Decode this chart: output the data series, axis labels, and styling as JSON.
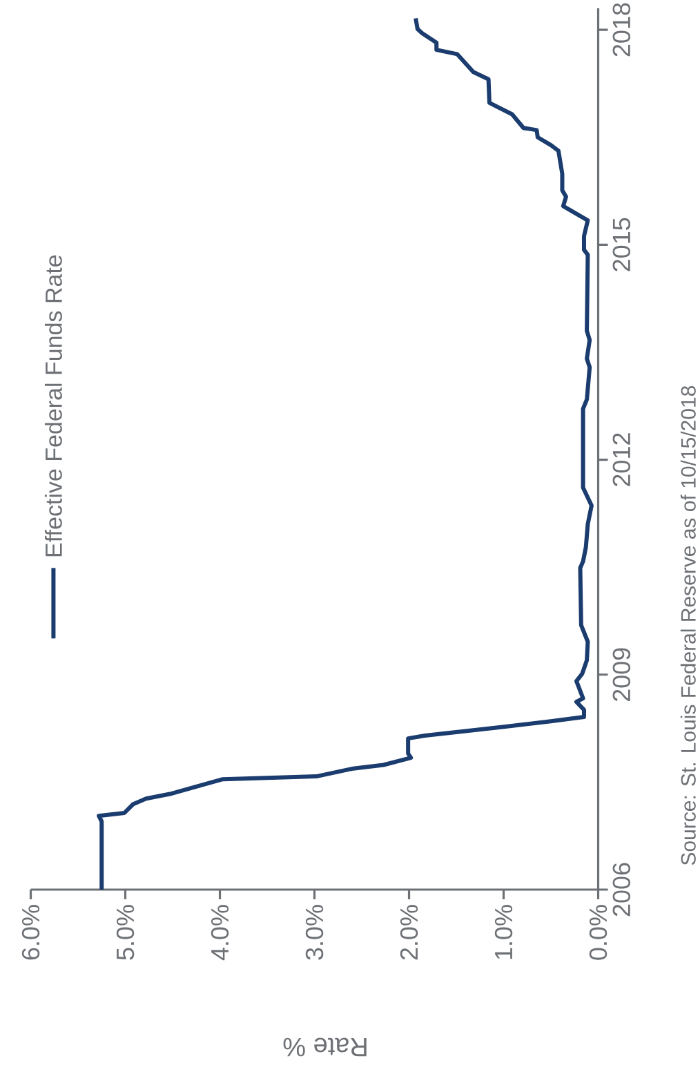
{
  "chart_data": {
    "type": "line",
    "xlabel": "Rate %",
    "annotations": [
      "Source: St. Louis Federal Reserve as of 10/15/2018"
    ],
    "series": [
      {
        "name": "Effective Federal Funds Rate",
        "color": "#1b3c6e",
        "x": [
          5.25,
          5.25,
          5.28,
          5.01,
          4.92,
          4.78,
          4.51,
          3.97,
          2.98,
          2.59,
          2.27,
          1.98,
          2.01,
          2.01,
          1.83,
          1.01,
          0.5,
          0.15,
          0.15,
          0.23,
          0.16,
          0.23,
          0.17,
          0.12,
          0.11,
          0.18,
          0.19,
          0.16,
          0.13,
          0.11,
          0.07,
          0.16,
          0.16,
          0.12,
          0.09,
          0.12,
          0.09,
          0.12,
          0.11,
          0.15,
          0.15,
          0.11,
          0.37,
          0.34,
          0.38,
          0.38,
          0.42,
          0.5,
          0.64,
          0.65,
          0.79,
          0.91,
          1.15,
          1.16,
          1.32,
          1.49,
          1.71,
          1.71,
          1.86,
          1.91,
          1.93
        ],
        "values": [
          2006.0,
          2006.95,
          2007.03,
          2007.07,
          2007.19,
          2007.27,
          2007.34,
          2007.54,
          2007.58,
          2007.69,
          2007.74,
          2007.84,
          2007.9,
          2008.11,
          2008.15,
          2008.27,
          2008.35,
          2008.41,
          2008.51,
          2008.62,
          2008.67,
          2008.91,
          2009.01,
          2009.2,
          2009.46,
          2009.69,
          2010.49,
          2010.58,
          2010.78,
          2011.1,
          2011.36,
          2011.61,
          2012.71,
          2012.84,
          2013.29,
          2013.41,
          2013.67,
          2013.8,
          2014.86,
          2014.93,
          2015.12,
          2015.34,
          2015.54,
          2015.67,
          2015.76,
          2015.99,
          2016.31,
          2016.39,
          2016.5,
          2016.6,
          2016.63,
          2016.82,
          2016.98,
          2017.31,
          2017.41,
          2017.66,
          2017.72,
          2017.82,
          2017.95,
          2018.01,
          2018.16
        ]
      }
    ],
    "xlim": [
      6,
      0
    ],
    "xticks": [
      {
        "value": 6,
        "label": "6.0%"
      },
      {
        "value": 5,
        "label": "5.0%"
      },
      {
        "value": 4,
        "label": "4.0%"
      },
      {
        "value": 3,
        "label": "3.0%"
      },
      {
        "value": 2,
        "label": "2.0%"
      },
      {
        "value": 1,
        "label": "1.0%"
      },
      {
        "value": 0,
        "label": "0.0%"
      }
    ],
    "ylim": [
      2006,
      2018.3
    ],
    "yticks": [
      2006,
      2009,
      2012,
      2015,
      2018
    ],
    "grid": false,
    "legend": "left",
    "marker": "none",
    "line_style": "solid"
  }
}
